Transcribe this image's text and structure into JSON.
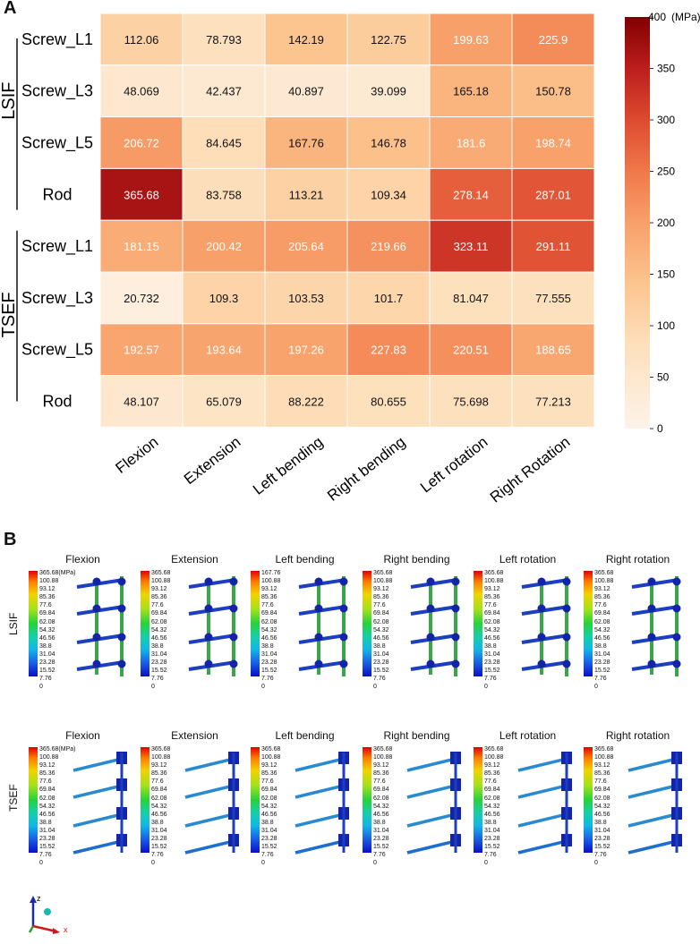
{
  "panel_a_letter": "A",
  "panel_b_letter": "B",
  "chart_data": {
    "type": "heatmap",
    "title": "",
    "groups": [
      {
        "name": "LSIF",
        "rows": [
          "Screw_L1",
          "Screw_L3",
          "Screw_L5",
          "Rod"
        ]
      },
      {
        "name": "TSEF",
        "rows": [
          "Screw_L1",
          "Screw_L3",
          "Screw_L5",
          "Rod"
        ]
      }
    ],
    "columns": [
      "Flexion",
      "Extension",
      "Left bending",
      "Right bending",
      "Left rotation",
      "Right Rotation"
    ],
    "values": [
      [
        "112.06",
        "78.793",
        "142.19",
        "122.75",
        "199.63",
        "225.9"
      ],
      [
        "48.069",
        "42.437",
        "40.897",
        "39.099",
        "165.18",
        "150.78"
      ],
      [
        "206.72",
        "84.645",
        "167.76",
        "146.78",
        "181.6",
        "198.74"
      ],
      [
        "365.68",
        "83.758",
        "113.21",
        "109.34",
        "278.14",
        "287.01"
      ],
      [
        "181.15",
        "200.42",
        "205.64",
        "219.66",
        "323.11",
        "291.11"
      ],
      [
        "20.732",
        "109.3",
        "103.53",
        "101.7",
        "81.047",
        "77.555"
      ],
      [
        "192.57",
        "193.64",
        "197.26",
        "227.83",
        "220.51",
        "188.65"
      ],
      [
        "48.107",
        "65.079",
        "88.222",
        "80.655",
        "75.698",
        "77.213"
      ]
    ],
    "colorbar": {
      "min": 0,
      "max": 400,
      "ticks": [
        "0",
        "50",
        "100",
        "150",
        "200",
        "250",
        "300",
        "350",
        "400"
      ],
      "unit": "(MPa)"
    },
    "colors": {
      "low": "#fdf0e4",
      "mid1": "#fcd3a4",
      "mid2": "#f8a06a",
      "mid3": "#e45a3a",
      "high": "#8b0000"
    }
  },
  "panel_b": {
    "rows": [
      {
        "label": "LSIF",
        "items": [
          {
            "title": "Flexion",
            "legend": [
              "365.68(MPa)",
              "100.88",
              "93.12",
              "85.36",
              "77.6",
              "69.84",
              "62.08",
              "54.32",
              "46.56",
              "38.8",
              "31.04",
              "23.28",
              "15.52",
              "7.76",
              "0"
            ]
          },
          {
            "title": "Extension",
            "legend": [
              "365.68",
              "100.88",
              "93.12",
              "85.36",
              "77.6",
              "69.84",
              "62.08",
              "54.32",
              "46.56",
              "38.8",
              "31.04",
              "23.28",
              "15.52",
              "7.76",
              "0"
            ]
          },
          {
            "title": "Left bending",
            "legend": [
              "167.76",
              "100.88",
              "93.12",
              "85.36",
              "77.6",
              "69.84",
              "62.08",
              "54.32",
              "46.56",
              "38.8",
              "31.04",
              "23.28",
              "15.52",
              "7.76",
              "0"
            ]
          },
          {
            "title": "Right bending",
            "legend": [
              "365.68",
              "100.88",
              "93.12",
              "85.36",
              "77.6",
              "69.84",
              "62.08",
              "54.32",
              "46.56",
              "38.8",
              "31.04",
              "23.28",
              "15.52",
              "7.76",
              "0"
            ]
          },
          {
            "title": "Left rotation",
            "legend": [
              "365.68",
              "100.88",
              "93.12",
              "85.36",
              "77.6",
              "69.84",
              "62.08",
              "54.32",
              "46.56",
              "38.8",
              "31.04",
              "23.28",
              "15.52",
              "7.76",
              "0"
            ]
          },
          {
            "title": "Right rotation",
            "legend": [
              "365.68",
              "100.88",
              "93.12",
              "85.36",
              "77.6",
              "69.84",
              "62.08",
              "54.32",
              "46.56",
              "38.8",
              "31.04",
              "23.28",
              "15.52",
              "7.76",
              "0"
            ]
          }
        ]
      },
      {
        "label": "TSEF",
        "items": [
          {
            "title": "Flexion",
            "legend": [
              "365.68(MPa)",
              "100.88",
              "93.12",
              "85.36",
              "77.6",
              "69.84",
              "62.08",
              "54.32",
              "46.56",
              "38.8",
              "31.04",
              "23.28",
              "15.52",
              "7.76",
              "0"
            ]
          },
          {
            "title": "Extension",
            "legend": [
              "365.68",
              "100.88",
              "93.12",
              "85.36",
              "77.6",
              "69.84",
              "62.08",
              "54.32",
              "46.56",
              "38.8",
              "31.04",
              "23.28",
              "15.52",
              "7.76",
              "0"
            ]
          },
          {
            "title": "Left bending",
            "legend": [
              "365.68",
              "100.88",
              "93.12",
              "85.36",
              "77.6",
              "69.84",
              "62.08",
              "54.32",
              "46.56",
              "38.8",
              "31.04",
              "23.28",
              "15.52",
              "7.76",
              "0"
            ]
          },
          {
            "title": "Right bending",
            "legend": [
              "365.68",
              "100.88",
              "93.12",
              "85.36",
              "77.6",
              "69.84",
              "62.08",
              "54.32",
              "46.56",
              "38.8",
              "31.04",
              "23.28",
              "15.52",
              "7.76",
              "0"
            ]
          },
          {
            "title": "Left rotation",
            "legend": [
              "365.68",
              "100.88",
              "93.12",
              "85.36",
              "77.6",
              "69.84",
              "62.08",
              "54.32",
              "46.56",
              "38.8",
              "31.04",
              "23.28",
              "15.52",
              "7.76",
              "0"
            ]
          },
          {
            "title": "Right rotation",
            "legend": [
              "365.68",
              "100.88",
              "93.12",
              "85.36",
              "77.6",
              "69.84",
              "62.08",
              "54.32",
              "46.56",
              "38.8",
              "31.04",
              "23.28",
              "15.52",
              "7.76",
              "0"
            ]
          }
        ]
      }
    ],
    "axis_labels": {
      "z": "z",
      "x": "x"
    }
  }
}
